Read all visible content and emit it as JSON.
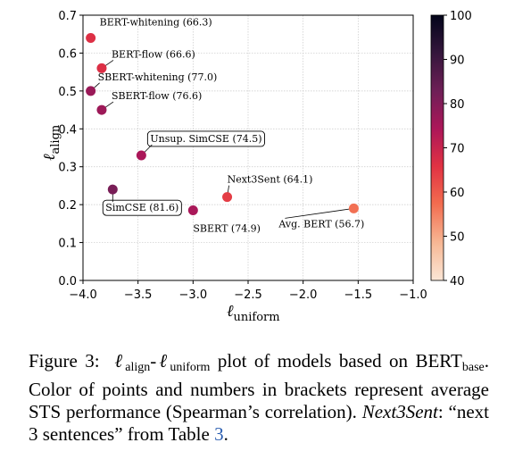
{
  "chart_data": {
    "type": "scatter",
    "xlabel_main": "ℓ",
    "xlabel_sub": "uniform",
    "ylabel_main": "ℓ",
    "ylabel_sub": "align",
    "xlim": [
      -4.0,
      -1.0
    ],
    "ylim": [
      0.0,
      0.7
    ],
    "x_ticks": [
      -4.0,
      -3.5,
      -3.0,
      -2.5,
      -2.0,
      -1.5,
      -1.0
    ],
    "x_tick_labels": [
      "−4.0",
      "−3.5",
      "−3.0",
      "−2.5",
      "−2.0",
      "−1.5",
      "−1.0"
    ],
    "y_ticks": [
      0.0,
      0.1,
      0.2,
      0.3,
      0.4,
      0.5,
      0.6,
      0.7
    ],
    "y_tick_labels": [
      "0.0",
      "0.1",
      "0.2",
      "0.3",
      "0.4",
      "0.5",
      "0.6",
      "0.7"
    ],
    "grid": true,
    "colorbar": {
      "range": [
        40,
        100
      ],
      "ticks": [
        40,
        50,
        60,
        70,
        80,
        90,
        100
      ],
      "tick_labels": [
        "40",
        "50",
        "60",
        "70",
        "80",
        "90",
        "100"
      ],
      "colors": [
        "#fbe6d6",
        "#f7b895",
        "#f26c4f",
        "#e13243",
        "#ad1759",
        "#701f57",
        "#33163b",
        "#03051a"
      ]
    },
    "points": [
      {
        "label": "BERT-whitening (66.3)",
        "x": -3.93,
        "y": 0.64,
        "value": 66.3,
        "boxed": false
      },
      {
        "label": "BERT-flow (66.6)",
        "x": -3.83,
        "y": 0.56,
        "value": 66.6,
        "boxed": false
      },
      {
        "label": "SBERT-whitening (77.0)",
        "x": -3.93,
        "y": 0.5,
        "value": 77.0,
        "boxed": false
      },
      {
        "label": "SBERT-flow (76.6)",
        "x": -3.83,
        "y": 0.45,
        "value": 76.6,
        "boxed": false
      },
      {
        "label": "Unsup. SimCSE (74.5)",
        "x": -3.47,
        "y": 0.33,
        "value": 74.5,
        "boxed": true
      },
      {
        "label": "SimCSE (81.6)",
        "x": -3.73,
        "y": 0.24,
        "value": 81.6,
        "boxed": true
      },
      {
        "label": "SBERT (74.9)",
        "x": -3.0,
        "y": 0.185,
        "value": 74.9,
        "boxed": false
      },
      {
        "label": "Next3Sent (64.1)",
        "x": -2.69,
        "y": 0.22,
        "value": 64.1,
        "boxed": false
      },
      {
        "label": "Avg. BERT (56.7)",
        "x": -1.54,
        "y": 0.19,
        "value": 56.7,
        "boxed": false
      }
    ]
  },
  "caption": {
    "figure_label": "Figure 3:",
    "l1": "ℓ",
    "l1_sub": "align",
    "dash": "-",
    "l2": "ℓ",
    "l2_sub": "uniform",
    "text1": "plot of models based on",
    "bert": "BERT",
    "bert_sub": "base",
    "text2": ". Color of points and numbers in brackets represent average STS performance (Spearman’s correlation).",
    "italic": "Next3Sent",
    "text3": ": “next 3 sentences” from Table ",
    "table_ref": "3",
    "text4": "."
  }
}
